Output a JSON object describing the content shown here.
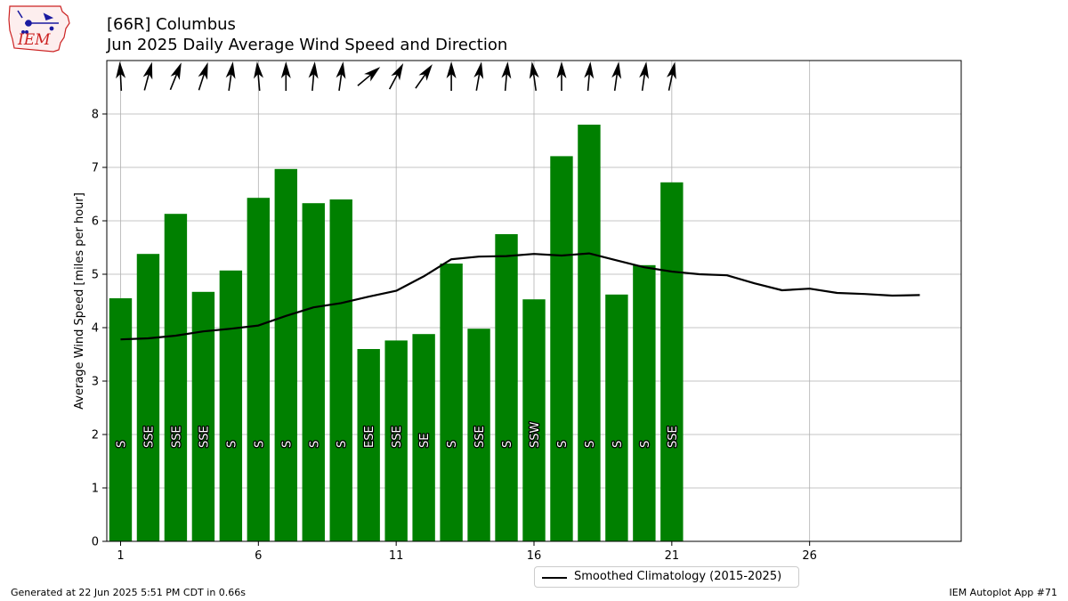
{
  "header": {
    "title_line1": "[66R] Columbus",
    "title_line2": "Jun 2025 Daily Average Wind Speed and Direction"
  },
  "logo": {
    "text": "IEM"
  },
  "footer": {
    "left": "Generated at 22 Jun 2025 5:51 PM CDT in 0.66s",
    "right": "IEM Autoplot App #71"
  },
  "legend": {
    "label": "Smoothed Climatology (2015-2025)"
  },
  "colors": {
    "bar": "#008000",
    "line": "#000000",
    "grid": "#b0b0b0",
    "logo_red": "#cc2222",
    "logo_blue": "#1a1aa0"
  },
  "chart_data": {
    "type": "bar",
    "title": "Jun 2025 Daily Average Wind Speed and Direction",
    "ylabel": "Average Wind Speed [miles per hour]",
    "xlabel": "",
    "xlim": [
      0.5,
      31.5
    ],
    "ylim": [
      0,
      9
    ],
    "xticks": [
      1,
      6,
      11,
      16,
      21,
      26
    ],
    "yticks": [
      0,
      1,
      2,
      3,
      4,
      5,
      6,
      7,
      8
    ],
    "grid": true,
    "legend_position": "below",
    "days": [
      1,
      2,
      3,
      4,
      5,
      6,
      7,
      8,
      9,
      10,
      11,
      12,
      13,
      14,
      15,
      16,
      17,
      18,
      19,
      20,
      21
    ],
    "speeds": [
      4.55,
      5.38,
      6.13,
      4.67,
      5.07,
      6.43,
      6.97,
      6.33,
      6.4,
      3.6,
      3.76,
      3.88,
      5.2,
      3.98,
      5.75,
      4.53,
      7.21,
      7.8,
      4.62,
      5.17,
      6.72
    ],
    "directions": [
      "S",
      "SSE",
      "SSE",
      "SSE",
      "S",
      "S",
      "S",
      "S",
      "S",
      "ESE",
      "SSE",
      "SE",
      "S",
      "SSE",
      "S",
      "SSW",
      "S",
      "S",
      "S",
      "S",
      "SSE"
    ],
    "arrow_angles_deg": [
      -3,
      15,
      22,
      18,
      8,
      -5,
      0,
      5,
      8,
      50,
      28,
      35,
      0,
      10,
      5,
      -8,
      0,
      5,
      8,
      8,
      12
    ],
    "series": [
      {
        "name": "Smoothed Climatology (2015-2025)",
        "x": [
          1,
          2,
          3,
          4,
          5,
          6,
          7,
          8,
          9,
          10,
          11,
          12,
          13,
          14,
          15,
          16,
          17,
          18,
          19,
          20,
          21,
          22,
          23,
          24,
          25,
          26,
          27,
          28,
          29,
          30
        ],
        "values": [
          3.78,
          3.8,
          3.85,
          3.93,
          3.98,
          4.04,
          4.22,
          4.38,
          4.46,
          4.58,
          4.69,
          4.96,
          5.28,
          5.33,
          5.34,
          5.38,
          5.35,
          5.39,
          5.26,
          5.13,
          5.05,
          5.0,
          4.98,
          4.83,
          4.7,
          4.73,
          4.65,
          4.63,
          4.6,
          4.61
        ]
      }
    ]
  }
}
